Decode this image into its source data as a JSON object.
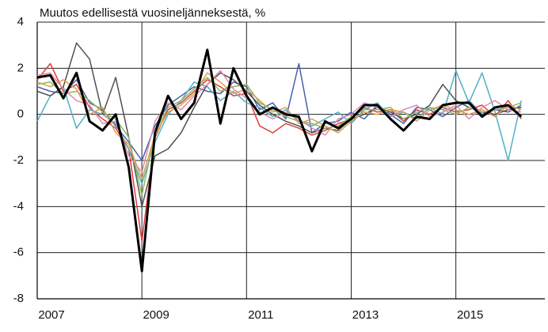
{
  "chart_data": {
    "type": "line",
    "title": "Muutos edellisestä vuosineljänneksestä, %",
    "x": [
      2007,
      2007.25,
      2007.5,
      2007.75,
      2008,
      2008.25,
      2008.5,
      2008.75,
      2009,
      2009.25,
      2009.5,
      2009.75,
      2010,
      2010.25,
      2010.5,
      2010.75,
      2011,
      2011.25,
      2011.5,
      2011.75,
      2012,
      2012.25,
      2012.5,
      2012.75,
      2013,
      2013.25,
      2013.5,
      2013.75,
      2014,
      2014.25,
      2014.5,
      2014.75,
      2015,
      2015.25,
      2015.5,
      2015.75,
      2016,
      2016.25
    ],
    "xlim": [
      2007,
      2016.7
    ],
    "xticks": [
      2007,
      2009,
      2011,
      2013,
      2015
    ],
    "ylim": [
      -8,
      4
    ],
    "yticks": [
      -8,
      -6,
      -4,
      -2,
      0,
      2,
      4
    ],
    "grid": true,
    "series": [
      {
        "color": "#e03c3c",
        "values": [
          1.5,
          2.2,
          1.0,
          1.3,
          0.3,
          -0.2,
          -0.6,
          -1.5,
          -5.5,
          -1.0,
          0.2,
          0.5,
          1.0,
          1.5,
          1.2,
          0.8,
          0.9,
          -0.5,
          -0.8,
          -0.4,
          -0.6,
          -0.9,
          -0.7,
          -0.4,
          -0.2,
          0.3,
          0.1,
          0.2,
          -0.3,
          0.2,
          0.0,
          0.3,
          0.1,
          0.2,
          0.4,
          -0.1,
          0.6,
          -0.2
        ]
      },
      {
        "color": "#4a5fb0",
        "values": [
          1.2,
          1.0,
          0.9,
          1.5,
          0.5,
          0.2,
          -0.5,
          -1.2,
          -2.0,
          -0.5,
          0.4,
          0.8,
          1.2,
          1.0,
          0.9,
          1.4,
          1.2,
          0.2,
          0.5,
          -0.2,
          2.2,
          -0.8,
          -0.4,
          -0.3,
          0.1,
          -0.2,
          0.4,
          0.0,
          -0.4,
          0.3,
          0.2,
          -0.1,
          0.3,
          0.6,
          0.0,
          0.2,
          0.1,
          0.4
        ]
      },
      {
        "color": "#4fb0c6",
        "values": [
          -0.3,
          0.8,
          1.2,
          -0.6,
          0.2,
          0.0,
          -0.4,
          -1.5,
          -3.0,
          -1.2,
          0.0,
          0.6,
          1.4,
          1.2,
          0.6,
          1.0,
          0.5,
          0.3,
          -0.1,
          0.2,
          -0.3,
          -0.5,
          -0.2,
          0.1,
          -0.4,
          0.2,
          0.5,
          -0.1,
          0.1,
          -0.2,
          0.3,
          0.0,
          1.9,
          0.5,
          1.8,
          0.1,
          -2.0,
          0.6
        ]
      },
      {
        "color": "#505050",
        "values": [
          1.0,
          0.8,
          1.2,
          3.1,
          2.4,
          0.0,
          1.6,
          -1.0,
          -4.0,
          -1.8,
          -1.5,
          -0.8,
          0.3,
          1.3,
          1.8,
          1.5,
          1.0,
          0.4,
          0.0,
          -0.3,
          -0.5,
          -0.8,
          -0.6,
          -0.7,
          -0.2,
          0.0,
          0.3,
          0.1,
          -0.2,
          0.0,
          0.4,
          1.3,
          0.6,
          0.3,
          0.1,
          0.0,
          0.2,
          0.3
        ]
      },
      {
        "color": "#8db860",
        "values": [
          1.3,
          1.4,
          0.9,
          1.0,
          0.6,
          0.1,
          -0.2,
          -1.0,
          -3.5,
          -0.8,
          0.3,
          0.6,
          1.1,
          1.6,
          1.0,
          1.2,
          1.3,
          0.5,
          0.2,
          -0.1,
          -0.3,
          -0.4,
          -0.6,
          -0.5,
          -0.1,
          0.2,
          0.2,
          0.3,
          -0.2,
          0.1,
          0.3,
          0.2,
          0.0,
          0.3,
          0.1,
          0.2,
          0.3,
          0.5
        ]
      },
      {
        "color": "#e08ab0",
        "values": [
          1.7,
          1.8,
          1.1,
          0.6,
          0.4,
          -0.4,
          -0.3,
          -1.8,
          -2.5,
          -0.3,
          0.5,
          0.2,
          0.8,
          1.3,
          1.9,
          1.1,
          0.7,
          0.1,
          -0.2,
          0.1,
          -0.2,
          -0.6,
          -0.9,
          -0.2,
          0.0,
          0.5,
          0.3,
          -0.1,
          0.2,
          0.4,
          -0.1,
          0.1,
          0.4,
          -0.2,
          0.3,
          0.6,
          0.2,
          0.1
        ]
      },
      {
        "color": "#d9a050",
        "values": [
          1.4,
          1.2,
          1.5,
          1.1,
          0.0,
          0.3,
          -0.8,
          -1.3,
          -2.8,
          -0.9,
          0.1,
          0.4,
          0.9,
          1.8,
          1.4,
          0.9,
          1.1,
          0.6,
          0.1,
          0.3,
          -0.4,
          -0.2,
          -0.5,
          -0.8,
          -0.3,
          0.1,
          0.0,
          0.2,
          0.1,
          -0.3,
          0.2,
          0.4,
          0.2,
          0.0,
          0.2,
          -0.1,
          0.4,
          0.2
        ]
      },
      {
        "color": "#000000",
        "width": 3,
        "values": [
          1.6,
          1.7,
          0.7,
          1.8,
          -0.3,
          -0.7,
          0.0,
          -2.3,
          -6.8,
          -0.8,
          0.8,
          -0.2,
          0.5,
          2.8,
          -0.4,
          2.0,
          0.8,
          0.0,
          0.3,
          0.0,
          -0.1,
          -1.6,
          -0.3,
          -0.6,
          -0.2,
          0.4,
          0.4,
          -0.2,
          -0.7,
          -0.1,
          -0.2,
          0.4,
          0.5,
          0.5,
          -0.1,
          0.3,
          0.4,
          -0.1
        ]
      }
    ]
  }
}
